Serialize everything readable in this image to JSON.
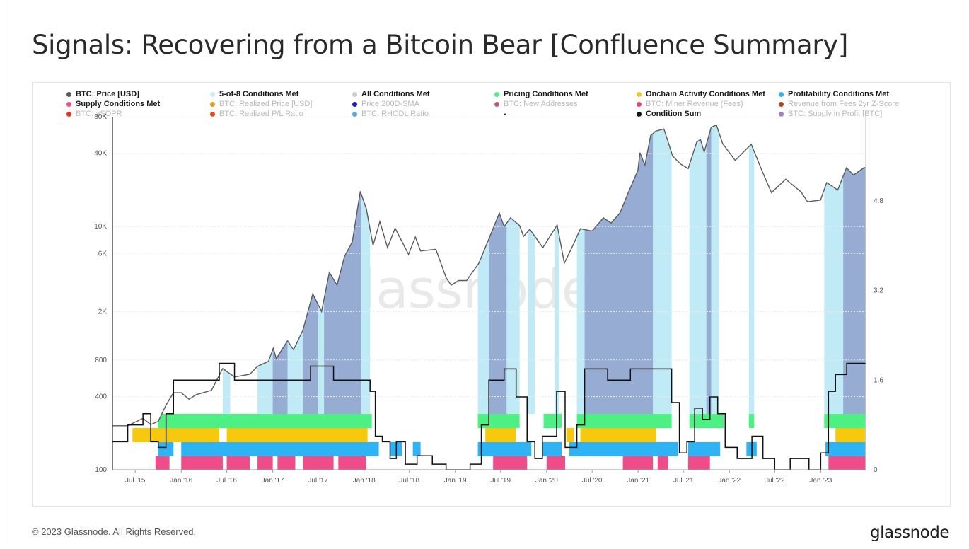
{
  "page": {
    "title": "Signals: Recovering from a Bitcoin Bear [Confluence Summary]",
    "footer": "© 2023 Glassnode. All Rights Reserved.",
    "brand": "glassnode",
    "watermark": "glassnode"
  },
  "chart_data": {
    "type": "line",
    "legend": [
      {
        "label": "BTC: Price [USD]",
        "color": "#5a5a5a",
        "active": true
      },
      {
        "label": "5-of-8 Conditions Met",
        "color": "#c9eef8",
        "active": true
      },
      {
        "label": "All Conditions Met",
        "color": "#cccccc",
        "active": true
      },
      {
        "label": "Pricing Conditions Met",
        "color": "#4ff083",
        "active": true
      },
      {
        "label": "Onchain Activity Conditions Met",
        "color": "#f6c90e",
        "active": true
      },
      {
        "label": "Profitability Conditions Met",
        "color": "#2eb3f5",
        "active": true
      },
      {
        "label": "Supply Conditions Met",
        "color": "#ef4c8a",
        "active": true
      },
      {
        "label": "BTC: Realized Price [USD]",
        "color": "#e5a218",
        "active": false
      },
      {
        "label": "Price 200D-SMA",
        "color": "#1d1db8",
        "active": false
      },
      {
        "label": "BTC: New Addresses",
        "color": "#c0587e",
        "active": false
      },
      {
        "label": "BTC: Miner Revenue (Fees)",
        "color": "#e8417a",
        "active": false
      },
      {
        "label": "Revenue from Fees 2yr Z-Score",
        "color": "#b5421a",
        "active": false
      },
      {
        "label": "BTC: aSOPR",
        "color": "#e2351c",
        "active": false
      },
      {
        "label": "BTC: Realized P/L Ratio",
        "color": "#e34b1f",
        "active": false
      },
      {
        "label": "BTC: RHODL Ratio",
        "color": "#5ba7d8",
        "active": false
      },
      {
        "label": "-",
        "color": "#ffffff",
        "active": true
      },
      {
        "label": "Condition Sum",
        "color": "#111111",
        "active": true
      },
      {
        "label": "BTC: Supply in Profit [BTC]",
        "color": "#a47cc6",
        "active": false
      }
    ],
    "x_ticks": [
      "Jul '15",
      "Jan '16",
      "Jul '16",
      "Jan '17",
      "Jul '17",
      "Jan '18",
      "Jul '18",
      "Jan '19",
      "Jul '19",
      "Jan '20",
      "Jul '20",
      "Jan '21",
      "Jul '21",
      "Jan '22",
      "Jul '22",
      "Jan '23"
    ],
    "y_left_ticks": [
      {
        "label": "80K",
        "value": 80000
      },
      {
        "label": "40K",
        "value": 40000
      },
      {
        "label": "10K",
        "value": 10000
      },
      {
        "label": "6K",
        "value": 6000
      },
      {
        "label": "2K",
        "value": 2000
      },
      {
        "label": "800",
        "value": 800
      },
      {
        "label": "400",
        "value": 400
      },
      {
        "label": "100",
        "value": 100
      }
    ],
    "y_left_scale": "log",
    "y_left_range": [
      100,
      80000
    ],
    "y_right_ticks": [
      {
        "label": "4.8",
        "value": 4.8
      },
      {
        "label": "3.2",
        "value": 3.2
      },
      {
        "label": "1.6",
        "value": 1.6
      },
      {
        "label": "0",
        "value": 0
      }
    ],
    "y_right_range": [
      0,
      6.3
    ],
    "x_range": [
      "2015-04-01",
      "2023-06-30"
    ],
    "price_series": {
      "name": "BTC: Price [USD]",
      "points": [
        [
          "2015-04-01",
          230
        ],
        [
          "2015-06-01",
          230
        ],
        [
          "2015-08-01",
          265
        ],
        [
          "2015-09-01",
          235
        ],
        [
          "2015-10-01",
          250
        ],
        [
          "2015-11-01",
          340
        ],
        [
          "2015-12-01",
          430
        ],
        [
          "2016-01-01",
          430
        ],
        [
          "2016-02-01",
          380
        ],
        [
          "2016-03-01",
          415
        ],
        [
          "2016-05-01",
          450
        ],
        [
          "2016-06-15",
          680
        ],
        [
          "2016-08-01",
          580
        ],
        [
          "2016-10-01",
          610
        ],
        [
          "2016-11-01",
          710
        ],
        [
          "2016-12-15",
          780
        ],
        [
          "2017-01-03",
          1000
        ],
        [
          "2017-01-15",
          820
        ],
        [
          "2017-03-01",
          1150
        ],
        [
          "2017-03-25",
          970
        ],
        [
          "2017-05-01",
          1400
        ],
        [
          "2017-06-10",
          2800
        ],
        [
          "2017-07-15",
          2000
        ],
        [
          "2017-08-15",
          4200
        ],
        [
          "2017-09-15",
          3300
        ],
        [
          "2017-10-15",
          5700
        ],
        [
          "2017-11-15",
          7500
        ],
        [
          "2017-12-17",
          19500
        ],
        [
          "2018-01-10",
          14000
        ],
        [
          "2018-02-06",
          7000
        ],
        [
          "2018-03-05",
          11000
        ],
        [
          "2018-04-05",
          6700
        ],
        [
          "2018-05-05",
          9700
        ],
        [
          "2018-06-28",
          5900
        ],
        [
          "2018-07-25",
          8200
        ],
        [
          "2018-08-15",
          6300
        ],
        [
          "2018-10-15",
          6500
        ],
        [
          "2018-11-25",
          3800
        ],
        [
          "2018-12-15",
          3300
        ],
        [
          "2019-01-15",
          3600
        ],
        [
          "2019-02-15",
          3600
        ],
        [
          "2019-04-05",
          5000
        ],
        [
          "2019-05-15",
          7900
        ],
        [
          "2019-06-26",
          12900
        ],
        [
          "2019-07-15",
          10000
        ],
        [
          "2019-08-10",
          11800
        ],
        [
          "2019-09-15",
          10200
        ],
        [
          "2019-10-01",
          8300
        ],
        [
          "2019-10-26",
          9500
        ],
        [
          "2019-12-17",
          6700
        ],
        [
          "2020-02-12",
          10300
        ],
        [
          "2020-03-12",
          5000
        ],
        [
          "2020-04-15",
          7000
        ],
        [
          "2020-05-15",
          9600
        ],
        [
          "2020-07-01",
          9200
        ],
        [
          "2020-08-15",
          11800
        ],
        [
          "2020-09-15",
          10700
        ],
        [
          "2020-10-21",
          13000
        ],
        [
          "2020-11-20",
          18500
        ],
        [
          "2020-12-31",
          29000
        ],
        [
          "2021-01-08",
          40500
        ],
        [
          "2021-01-28",
          32000
        ],
        [
          "2021-02-20",
          56000
        ],
        [
          "2021-03-13",
          61000
        ],
        [
          "2021-04-14",
          63500
        ],
        [
          "2021-05-19",
          38000
        ],
        [
          "2021-06-21",
          32500
        ],
        [
          "2021-07-20",
          30000
        ],
        [
          "2021-08-23",
          49500
        ],
        [
          "2021-09-07",
          52000
        ],
        [
          "2021-09-22",
          41000
        ],
        [
          "2021-10-20",
          65500
        ],
        [
          "2021-11-10",
          68500
        ],
        [
          "2021-12-05",
          48000
        ],
        [
          "2022-01-24",
          35000
        ],
        [
          "2022-03-29",
          47500
        ],
        [
          "2022-05-12",
          28500
        ],
        [
          "2022-06-18",
          19000
        ],
        [
          "2022-08-14",
          24500
        ],
        [
          "2022-10-15",
          19200
        ],
        [
          "2022-11-09",
          16000
        ],
        [
          "2022-12-31",
          16500
        ],
        [
          "2023-01-25",
          23000
        ],
        [
          "2023-03-10",
          20000
        ],
        [
          "2023-04-14",
          30500
        ],
        [
          "2023-05-12",
          26500
        ],
        [
          "2023-06-23",
          30500
        ],
        [
          "2023-06-30",
          30400
        ]
      ]
    },
    "condition_sum_series": {
      "name": "Condition Sum",
      "points": [
        [
          "2015-04-01",
          0.5
        ],
        [
          "2015-06-01",
          0.8
        ],
        [
          "2015-07-15",
          0.8
        ],
        [
          "2015-08-01",
          1.0
        ],
        [
          "2015-09-01",
          0.5
        ],
        [
          "2015-10-01",
          0.4
        ],
        [
          "2015-11-01",
          1.0
        ],
        [
          "2015-12-01",
          1.6
        ],
        [
          "2016-03-01",
          1.6
        ],
        [
          "2016-06-01",
          1.9
        ],
        [
          "2016-08-01",
          1.6
        ],
        [
          "2016-12-01",
          1.6
        ],
        [
          "2017-03-01",
          1.6
        ],
        [
          "2017-06-01",
          1.85
        ],
        [
          "2017-09-01",
          1.6
        ],
        [
          "2017-12-01",
          1.6
        ],
        [
          "2018-01-25",
          1.4
        ],
        [
          "2018-02-15",
          0.6
        ],
        [
          "2018-03-15",
          0.5
        ],
        [
          "2018-04-15",
          0.2
        ],
        [
          "2018-05-10",
          0.5
        ],
        [
          "2018-06-15",
          0.1
        ],
        [
          "2018-08-01",
          0.25
        ],
        [
          "2018-10-01",
          0.1
        ],
        [
          "2018-11-25",
          0.0
        ],
        [
          "2019-03-01",
          0.1
        ],
        [
          "2019-04-15",
          0.8
        ],
        [
          "2019-05-15",
          1.6
        ],
        [
          "2019-07-15",
          1.8
        ],
        [
          "2019-09-01",
          1.3
        ],
        [
          "2019-10-15",
          0.5
        ],
        [
          "2019-11-15",
          0.2
        ],
        [
          "2019-12-15",
          0.6
        ],
        [
          "2020-02-10",
          1.4
        ],
        [
          "2020-03-15",
          0.4
        ],
        [
          "2020-05-01",
          0.8
        ],
        [
          "2020-06-01",
          1.8
        ],
        [
          "2020-09-01",
          1.6
        ],
        [
          "2020-12-01",
          1.8
        ],
        [
          "2021-03-15",
          1.8
        ],
        [
          "2021-05-15",
          1.2
        ],
        [
          "2021-06-15",
          0.3
        ],
        [
          "2021-07-15",
          0.5
        ],
        [
          "2021-08-15",
          1.1
        ],
        [
          "2021-09-15",
          0.9
        ],
        [
          "2021-10-15",
          1.3
        ],
        [
          "2021-11-15",
          1.0
        ],
        [
          "2021-12-15",
          0.4
        ],
        [
          "2022-02-01",
          0.2
        ],
        [
          "2022-04-01",
          0.6
        ],
        [
          "2022-05-15",
          0.2
        ],
        [
          "2022-07-01",
          0.0
        ],
        [
          "2022-09-01",
          0.2
        ],
        [
          "2022-11-15",
          0.0
        ],
        [
          "2023-01-01",
          0.3
        ],
        [
          "2023-02-01",
          1.4
        ],
        [
          "2023-03-01",
          1.7
        ],
        [
          "2023-04-15",
          1.9
        ],
        [
          "2023-06-30",
          1.9
        ]
      ]
    },
    "bands": [
      {
        "name": "Supply Conditions Met",
        "color": "#ef4c8a",
        "ranges": [
          [
            "2015-09-20",
            "2015-11-15"
          ],
          [
            "2016-01-01",
            "2016-06-15"
          ],
          [
            "2016-07-01",
            "2016-10-01"
          ],
          [
            "2016-11-01",
            "2017-01-01"
          ],
          [
            "2017-01-20",
            "2017-04-01"
          ],
          [
            "2017-05-01",
            "2017-09-01"
          ],
          [
            "2017-09-20",
            "2018-01-10"
          ],
          [
            "2019-06-01",
            "2019-10-15"
          ],
          [
            "2020-01-01",
            "2020-03-15"
          ],
          [
            "2020-11-01",
            "2021-03-01"
          ],
          [
            "2021-03-20",
            "2021-05-01"
          ],
          [
            "2021-07-20",
            "2021-10-15"
          ],
          [
            "2023-02-01",
            "2023-06-28"
          ]
        ]
      },
      {
        "name": "Profitability Conditions Met",
        "color": "#2eb3f5",
        "ranges": [
          [
            "2015-10-01",
            "2015-12-01"
          ],
          [
            "2016-01-01",
            "2018-03-01"
          ],
          [
            "2018-04-15",
            "2018-06-01"
          ],
          [
            "2018-07-15",
            "2018-08-15"
          ],
          [
            "2019-04-01",
            "2019-11-01"
          ],
          [
            "2019-12-15",
            "2020-03-01"
          ],
          [
            "2020-04-01",
            "2021-06-10"
          ],
          [
            "2021-07-20",
            "2021-11-25"
          ],
          [
            "2022-03-10",
            "2022-04-20"
          ],
          [
            "2023-01-20",
            "2023-06-28"
          ]
        ]
      },
      {
        "name": "Onchain Activity Conditions Met",
        "color": "#f6c90e",
        "ranges": [
          [
            "2015-06-20",
            "2016-06-01"
          ],
          [
            "2016-07-01",
            "2018-01-15"
          ],
          [
            "2019-05-01",
            "2019-09-01"
          ],
          [
            "2020-03-20",
            "2020-04-20"
          ],
          [
            "2020-05-15",
            "2021-03-15"
          ],
          [
            "2023-03-01",
            "2023-06-28"
          ]
        ]
      },
      {
        "name": "Pricing Conditions Met",
        "color": "#4ff083",
        "ranges": [
          [
            "2015-10-01",
            "2018-02-01"
          ],
          [
            "2019-04-01",
            "2019-09-15"
          ],
          [
            "2019-12-20",
            "2020-03-01"
          ],
          [
            "2020-05-01",
            "2021-05-15"
          ],
          [
            "2021-07-25",
            "2021-12-10"
          ],
          [
            "2022-03-20",
            "2022-04-10"
          ],
          [
            "2023-01-15",
            "2023-06-28"
          ]
        ]
      },
      {
        "name": "5-of-8 Conditions Met",
        "color": "#bde9f5",
        "ranges": [
          [
            "2016-06-15",
            "2016-07-15"
          ],
          [
            "2016-11-01",
            "2018-01-25"
          ],
          [
            "2019-04-01",
            "2019-09-15"
          ],
          [
            "2019-10-20",
            "2019-11-15"
          ],
          [
            "2020-02-01",
            "2020-02-20"
          ],
          [
            "2020-05-01",
            "2021-05-15"
          ],
          [
            "2021-07-25",
            "2021-11-20"
          ],
          [
            "2022-03-20",
            "2022-04-10"
          ],
          [
            "2023-01-15",
            "2023-06-28"
          ]
        ]
      },
      {
        "name": "All Conditions Met",
        "color": "#8ea1cc",
        "ranges": [
          [
            "2017-01-01",
            "2017-03-01"
          ],
          [
            "2017-05-01",
            "2017-07-01"
          ],
          [
            "2017-07-25",
            "2017-12-20"
          ],
          [
            "2019-05-15",
            "2019-07-25"
          ],
          [
            "2020-06-01",
            "2021-03-01"
          ],
          [
            "2021-10-01",
            "2021-10-20"
          ],
          [
            "2023-04-01",
            "2023-06-28"
          ]
        ]
      }
    ]
  }
}
